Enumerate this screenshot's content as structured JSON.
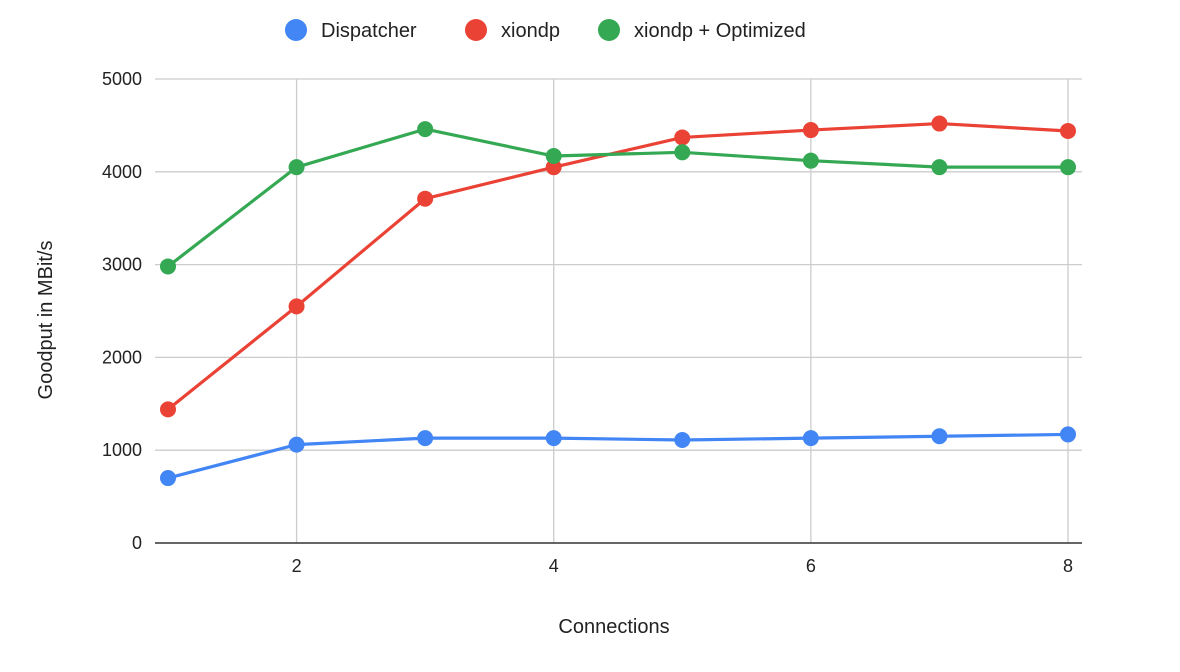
{
  "chart_data": {
    "type": "line",
    "title": "",
    "xlabel": "Connections",
    "ylabel": "Goodput in MBit/s",
    "x": [
      1,
      2,
      3,
      4,
      5,
      6,
      7,
      8
    ],
    "xlim": [
      1,
      8
    ],
    "ylim": [
      0,
      5000
    ],
    "x_ticks": [
      "2",
      "4",
      "6",
      "8"
    ],
    "y_ticks": [
      "0",
      "1000",
      "2000",
      "3000",
      "4000",
      "5000"
    ],
    "grid": true,
    "legend_position": "top",
    "series": [
      {
        "name": "Dispatcher",
        "color": "#4285f4",
        "values": [
          700,
          1060,
          1130,
          1130,
          1110,
          1130,
          1150,
          1170
        ]
      },
      {
        "name": "xiondp",
        "color": "#ea4335",
        "values": [
          1440,
          2550,
          3710,
          4050,
          4370,
          4450,
          4520,
          4440
        ]
      },
      {
        "name": "xiondp + Optimized",
        "color": "#34a853",
        "values": [
          2980,
          4050,
          4460,
          4170,
          4210,
          4120,
          4050,
          4050
        ]
      }
    ]
  }
}
